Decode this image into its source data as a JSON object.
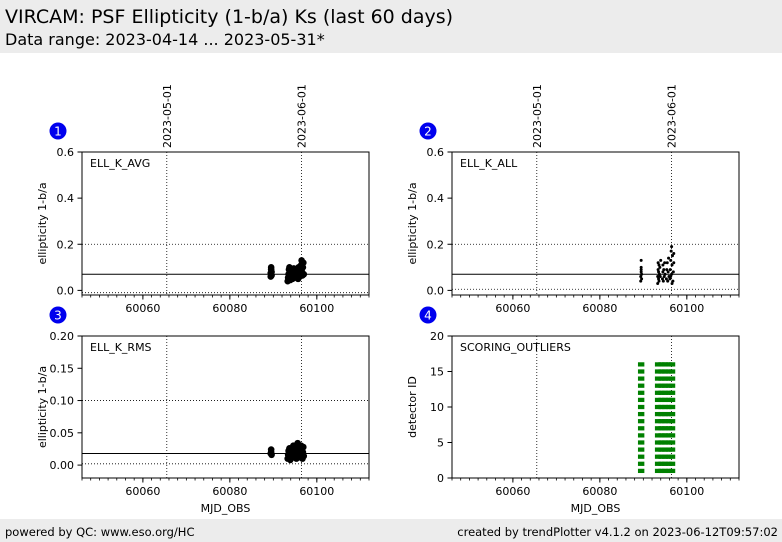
{
  "header": {
    "title": "VIRCAM: PSF Ellipticity (1-b/a) Ks (last 60 days)",
    "subtitle": "Data range: 2023-04-14 ... 2023-05-31*"
  },
  "footer": {
    "left": "powered by QC: www.eso.org/HC",
    "right": "created by trendPlotter v4.1.2 on 2023-06-12T09:57:02"
  },
  "colors": {
    "badge": "#0000ee",
    "points": "#000000",
    "bars": "#008000",
    "header_bg": "#ececec"
  },
  "chart_data": [
    {
      "panel": "1",
      "type": "scatter",
      "label": "ELL_K_AVG",
      "ylabel": "ellipticity 1-b/a",
      "xlabel": "",
      "xlim": [
        60046,
        60112
      ],
      "ylim": [
        -0.02,
        0.6
      ],
      "xticks": [
        60060,
        60080,
        60100
      ],
      "yticks": [
        "0.0",
        "0.2",
        "0.4",
        "0.6"
      ],
      "ytick_values": [
        0.0,
        0.2,
        0.4,
        0.6
      ],
      "show_xticklabels": true,
      "date_lines": [
        {
          "x": 60065.5,
          "label": "2023-05-01"
        },
        {
          "x": 60096.5,
          "label": "2023-06-01"
        }
      ],
      "hlines": [
        {
          "y": 0.07,
          "style": "solid"
        },
        {
          "y": 0.2,
          "style": "dotted"
        },
        {
          "y": -0.01,
          "style": "dotted"
        }
      ],
      "marker": "large",
      "points": [
        [
          60089.4,
          0.06
        ],
        [
          60089.4,
          0.075
        ],
        [
          60089.5,
          0.09
        ],
        [
          60089.5,
          0.1
        ],
        [
          60089.6,
          0.08
        ],
        [
          60089.6,
          0.065
        ],
        [
          60093.3,
          0.04
        ],
        [
          60093.4,
          0.055
        ],
        [
          60093.5,
          0.07
        ],
        [
          60093.6,
          0.09
        ],
        [
          60093.7,
          0.1
        ],
        [
          60093.8,
          0.06
        ],
        [
          60093.9,
          0.045
        ],
        [
          60094.0,
          0.075
        ],
        [
          60094.4,
          0.05
        ],
        [
          60094.5,
          0.065
        ],
        [
          60094.6,
          0.085
        ],
        [
          60094.7,
          0.095
        ],
        [
          60094.8,
          0.07
        ],
        [
          60094.9,
          0.055
        ],
        [
          60095.3,
          0.06
        ],
        [
          60095.4,
          0.08
        ],
        [
          60095.5,
          0.09
        ],
        [
          60095.6,
          0.07
        ],
        [
          60095.7,
          0.05
        ],
        [
          60095.8,
          0.1
        ],
        [
          60096.1,
          0.06
        ],
        [
          60096.2,
          0.075
        ],
        [
          60096.3,
          0.09
        ],
        [
          60096.4,
          0.11
        ],
        [
          60096.5,
          0.13
        ],
        [
          60096.6,
          0.08
        ],
        [
          60096.7,
          0.065
        ],
        [
          60096.8,
          0.1
        ],
        [
          60096.9,
          0.12
        ],
        [
          60097.0,
          0.07
        ]
      ]
    },
    {
      "panel": "2",
      "type": "scatter",
      "label": "ELL_K_ALL",
      "ylabel": "ellipticity 1-b/a",
      "xlabel": "",
      "xlim": [
        60046,
        60112
      ],
      "ylim": [
        -0.02,
        0.6
      ],
      "xticks": [
        60060,
        60080,
        60100
      ],
      "yticks": [
        "0.0",
        "0.2",
        "0.4",
        "0.6"
      ],
      "ytick_values": [
        0.0,
        0.2,
        0.4,
        0.6
      ],
      "show_xticklabels": true,
      "date_lines": [
        {
          "x": 60065.5,
          "label": "2023-05-01"
        },
        {
          "x": 60096.5,
          "label": "2023-06-01"
        }
      ],
      "hlines": [
        {
          "y": 0.07,
          "style": "solid"
        },
        {
          "y": 0.2,
          "style": "dotted"
        },
        {
          "y": 0.005,
          "style": "dotted"
        }
      ],
      "marker": "small",
      "points": [
        [
          60089.4,
          0.04
        ],
        [
          60089.4,
          0.06
        ],
        [
          60089.5,
          0.08
        ],
        [
          60089.5,
          0.1
        ],
        [
          60089.5,
          0.13
        ],
        [
          60089.6,
          0.07
        ],
        [
          60089.6,
          0.05
        ],
        [
          60089.5,
          0.09
        ],
        [
          60093.3,
          0.03
        ],
        [
          60093.3,
          0.06
        ],
        [
          60093.4,
          0.09
        ],
        [
          60093.4,
          0.12
        ],
        [
          60093.5,
          0.05
        ],
        [
          60093.5,
          0.08
        ],
        [
          60093.6,
          0.11
        ],
        [
          60093.6,
          0.04
        ],
        [
          60093.7,
          0.07
        ],
        [
          60093.8,
          0.1
        ],
        [
          60093.9,
          0.06
        ],
        [
          60094.0,
          0.13
        ],
        [
          60094.4,
          0.05
        ],
        [
          60094.5,
          0.08
        ],
        [
          60094.5,
          0.11
        ],
        [
          60094.6,
          0.04
        ],
        [
          60094.7,
          0.09
        ],
        [
          60094.8,
          0.06
        ],
        [
          60094.9,
          0.12
        ],
        [
          60095.0,
          0.07
        ],
        [
          60095.3,
          0.05
        ],
        [
          60095.4,
          0.09
        ],
        [
          60095.5,
          0.12
        ],
        [
          60095.6,
          0.04
        ],
        [
          60095.7,
          0.08
        ],
        [
          60095.8,
          0.14
        ],
        [
          60095.9,
          0.06
        ],
        [
          60096.1,
          0.05
        ],
        [
          60096.2,
          0.09
        ],
        [
          60096.3,
          0.13
        ],
        [
          60096.4,
          0.17
        ],
        [
          60096.5,
          0.19
        ],
        [
          60096.5,
          0.07
        ],
        [
          60096.6,
          0.11
        ],
        [
          60096.7,
          0.15
        ],
        [
          60096.8,
          0.04
        ],
        [
          60096.9,
          0.08
        ],
        [
          60097.0,
          0.12
        ],
        [
          60097.0,
          0.16
        ],
        [
          60096.6,
          0.03
        ],
        [
          60096.3,
          0.06
        ]
      ]
    },
    {
      "panel": "3",
      "type": "scatter",
      "label": "ELL_K_RMS",
      "ylabel": "ellipticity 1-b/a",
      "xlabel": "MJD_OBS",
      "xlim": [
        60046,
        60112
      ],
      "ylim": [
        -0.02,
        0.2
      ],
      "xticks": [
        60060,
        60080,
        60100
      ],
      "yticks": [
        "0.00",
        "0.05",
        "0.10",
        "0.15",
        "0.20"
      ],
      "ytick_values": [
        0.0,
        0.05,
        0.1,
        0.15,
        0.2
      ],
      "show_xticklabels": true,
      "date_lines": [
        {
          "x": 60065.5,
          "label": ""
        },
        {
          "x": 60096.5,
          "label": ""
        }
      ],
      "hlines": [
        {
          "y": 0.018,
          "style": "solid"
        },
        {
          "y": 0.1,
          "style": "dotted"
        },
        {
          "y": 0.002,
          "style": "dotted"
        }
      ],
      "marker": "large",
      "points": [
        [
          60089.4,
          0.018
        ],
        [
          60089.5,
          0.024
        ],
        [
          60089.5,
          0.02
        ],
        [
          60089.6,
          0.016
        ],
        [
          60093.3,
          0.01
        ],
        [
          60093.4,
          0.016
        ],
        [
          60093.5,
          0.022
        ],
        [
          60093.6,
          0.012
        ],
        [
          60093.7,
          0.026
        ],
        [
          60093.8,
          0.018
        ],
        [
          60093.9,
          0.008
        ],
        [
          60094.4,
          0.014
        ],
        [
          60094.5,
          0.02
        ],
        [
          60094.6,
          0.03
        ],
        [
          60094.7,
          0.012
        ],
        [
          60094.8,
          0.024
        ],
        [
          60094.9,
          0.016
        ],
        [
          60095.3,
          0.01
        ],
        [
          60095.4,
          0.018
        ],
        [
          60095.5,
          0.028
        ],
        [
          60095.6,
          0.034
        ],
        [
          60095.7,
          0.014
        ],
        [
          60095.8,
          0.022
        ],
        [
          60096.1,
          0.012
        ],
        [
          60096.2,
          0.02
        ],
        [
          60096.3,
          0.026
        ],
        [
          60096.4,
          0.03
        ],
        [
          60096.5,
          0.016
        ],
        [
          60096.6,
          0.024
        ],
        [
          60096.7,
          0.01
        ],
        [
          60096.8,
          0.02
        ],
        [
          60096.9,
          0.028
        ],
        [
          60097.0,
          0.014
        ]
      ]
    },
    {
      "panel": "4",
      "type": "bar",
      "label": "SCORING_OUTLIERS",
      "ylabel": "detector ID",
      "xlabel": "MJD_OBS",
      "xlim": [
        60046,
        60112
      ],
      "ylim": [
        0,
        20
      ],
      "xticks": [
        60060,
        60080,
        60100
      ],
      "yticks": [
        "0",
        "5",
        "10",
        "15",
        "20"
      ],
      "ytick_values": [
        0,
        5,
        10,
        15,
        20
      ],
      "show_xticklabels": true,
      "date_lines": [
        {
          "x": 60065.5,
          "label": ""
        },
        {
          "x": 60096.5,
          "label": ""
        }
      ],
      "hlines": [],
      "detectors": [
        1,
        16
      ],
      "outlier_columns": [
        60089.5,
        60093.4,
        60094.2,
        60095.0,
        60095.8,
        60096.6
      ]
    }
  ]
}
